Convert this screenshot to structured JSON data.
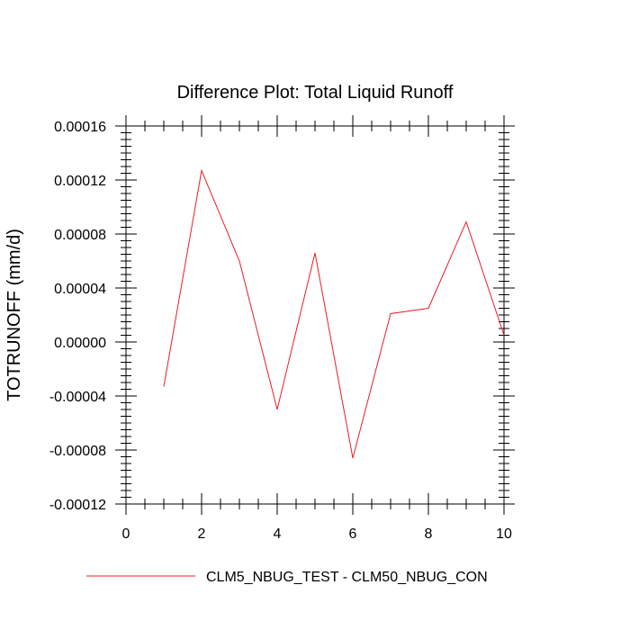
{
  "chart_data": {
    "type": "line",
    "title": "Difference Plot: Total Liquid Runoff",
    "xlabel": "",
    "ylabel": "TOTRUNOFF  (mm/d)",
    "xlim": [
      0,
      10
    ],
    "ylim": [
      -0.00012,
      0.00016
    ],
    "x_ticks": [
      0,
      2,
      4,
      6,
      8,
      10
    ],
    "x_tick_labels": [
      "0",
      "2",
      "4",
      "6",
      "8",
      "10"
    ],
    "y_ticks": [
      -0.00012,
      -8e-05,
      -4e-05,
      0,
      4e-05,
      8e-05,
      0.00012,
      0.00016
    ],
    "y_tick_labels": [
      "-0.00012",
      "-0.00008",
      "-0.00004",
      "0.00000",
      "0.00004",
      "0.00008",
      "0.00012",
      "0.00016"
    ],
    "grid": false,
    "legend_position": "bottom",
    "series": [
      {
        "name": "CLM5_NBUG_TEST - CLM50_NBUG_CON",
        "color": "#ee1c25",
        "x": [
          1,
          2,
          3,
          4,
          5,
          6,
          7,
          8,
          9,
          10
        ],
        "y": [
          -3.3e-05,
          0.000127,
          6e-05,
          -5e-05,
          6.6e-05,
          -8.6e-05,
          2.1e-05,
          2.5e-05,
          8.9e-05,
          5e-06
        ]
      }
    ]
  }
}
